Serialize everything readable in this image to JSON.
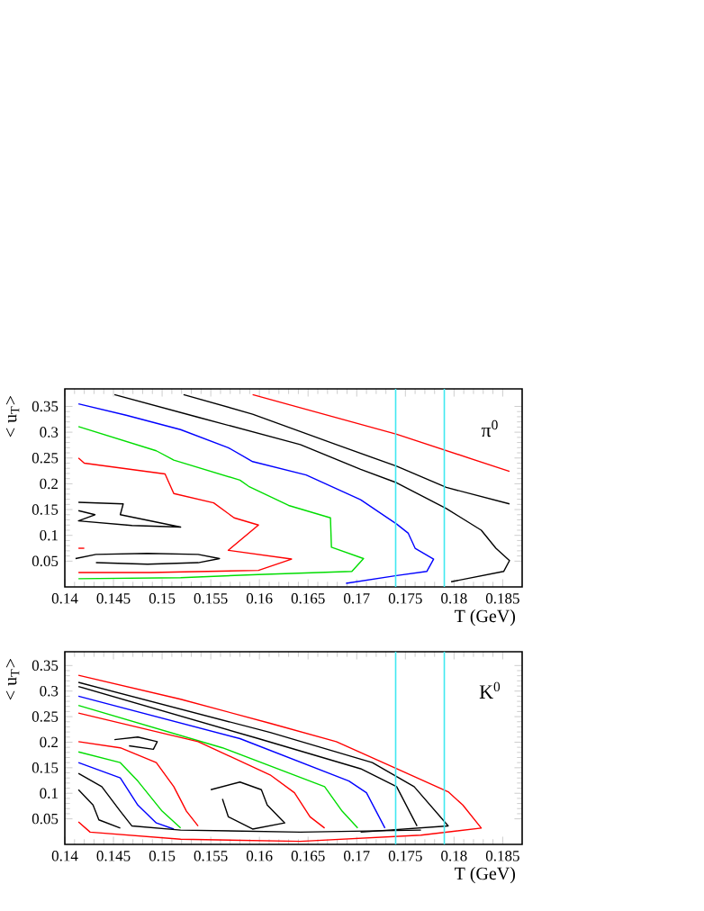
{
  "chart_data": [
    {
      "type": "line",
      "xlabel": "T (GeV)",
      "ylabel": "< u$_{T}$>",
      "xlim": [
        0.14,
        0.187
      ],
      "ylim": [
        0,
        0.384
      ],
      "xticks": [
        0.14,
        0.145,
        0.15,
        0.155,
        0.16,
        0.165,
        0.17,
        0.175,
        0.18,
        0.185
      ],
      "yticks": [
        0.05,
        0.1,
        0.15,
        0.2,
        0.25,
        0.3,
        0.35
      ],
      "annotations": [
        "π$^{0}$"
      ],
      "ref_lines": [
        {
          "axis": "x",
          "value": 0.174,
          "color": "#40e8f0"
        },
        {
          "axis": "x",
          "value": 0.179,
          "color": "#40e8f0"
        }
      ],
      "series": [
        {
          "color": "#ff0000",
          "x": [
            0.1593,
            0.1741,
            0.1857
          ],
          "values": [
            0.373,
            0.296,
            0.224
          ]
        },
        {
          "color": "#000000",
          "x": [
            0.1522,
            0.1593,
            0.1679,
            0.1741,
            0.1792,
            0.1857
          ],
          "values": [
            0.373,
            0.335,
            0.276,
            0.234,
            0.193,
            0.161
          ]
        },
        {
          "color": "#000000",
          "x": [
            0.1451,
            0.1537,
            0.1642,
            0.1704,
            0.1741,
            0.1792,
            0.1828,
            0.1843,
            0.1857,
            0.1851,
            0.1797
          ],
          "values": [
            0.373,
            0.329,
            0.276,
            0.228,
            0.202,
            0.152,
            0.11,
            0.075,
            0.051,
            0.03,
            0.01
          ]
        },
        {
          "color": "#0000ff",
          "x": [
            0.1414,
            0.1463,
            0.1519,
            0.1568,
            0.1593,
            0.1648,
            0.1704,
            0.1741,
            0.1753,
            0.176,
            0.1779,
            0.1772,
            0.1741,
            0.1689
          ],
          "values": [
            0.355,
            0.333,
            0.305,
            0.27,
            0.243,
            0.217,
            0.169,
            0.122,
            0.104,
            0.075,
            0.054,
            0.03,
            0.022,
            0.007
          ]
        },
        {
          "color": "#00dd00",
          "x": [
            0.1414,
            0.1494,
            0.1512,
            0.158,
            0.1589,
            0.163,
            0.1673,
            0.1674,
            0.1707,
            0.1695,
            0.1599,
            0.1519,
            0.1414
          ],
          "values": [
            0.311,
            0.264,
            0.246,
            0.207,
            0.195,
            0.158,
            0.134,
            0.077,
            0.055,
            0.03,
            0.024,
            0.018,
            0.016
          ]
        },
        {
          "color": "#ff0000",
          "x": [
            0.1414,
            0.142,
            0.1503,
            0.1512,
            0.1553,
            0.1574,
            0.1599,
            0.1568,
            0.1633,
            0.1599,
            0.1488,
            0.1414
          ],
          "values": [
            0.25,
            0.24,
            0.219,
            0.181,
            0.163,
            0.134,
            0.12,
            0.071,
            0.054,
            0.032,
            0.028,
            0.028
          ]
        },
        {
          "color": "#ff0000",
          "x": [
            0.1414,
            0.142
          ],
          "values": [
            0.075,
            0.075
          ]
        },
        {
          "color": "#000000",
          "x": [
            0.1414,
            0.146,
            0.1457,
            0.1519,
            0.1469,
            0.1414,
            0.1431,
            0.1414
          ],
          "values": [
            0.164,
            0.161,
            0.14,
            0.116,
            0.119,
            0.128,
            0.14,
            0.148
          ]
        },
        {
          "color": "#000000",
          "x": [
            0.1411,
            0.1432,
            0.1485,
            0.1537,
            0.1559,
            0.1537,
            0.1485,
            0.1432
          ],
          "values": [
            0.055,
            0.063,
            0.065,
            0.063,
            0.055,
            0.047,
            0.044,
            0.047
          ]
        }
      ]
    },
    {
      "type": "line",
      "xlabel": "T (GeV)",
      "ylabel": "< u$_{T}$>",
      "xlim": [
        0.14,
        0.187
      ],
      "ylim": [
        0,
        0.377
      ],
      "xticks": [
        0.14,
        0.145,
        0.15,
        0.155,
        0.16,
        0.165,
        0.17,
        0.175,
        0.18,
        0.185
      ],
      "yticks": [
        0.05,
        0.1,
        0.15,
        0.2,
        0.25,
        0.3,
        0.35
      ],
      "annotations": [
        "K$^{0}$"
      ],
      "ref_lines": [
        {
          "axis": "x",
          "value": 0.174,
          "color": "#40e8f0"
        },
        {
          "axis": "x",
          "value": 0.179,
          "color": "#40e8f0"
        }
      ],
      "series": [
        {
          "color": "#ff0000",
          "x": [
            0.1414,
            0.1519,
            0.1611,
            0.1679,
            0.1741,
            0.1794,
            0.1809,
            0.1828,
            0.1766,
            0.1642,
            0.1519,
            0.1426,
            0.1414
          ],
          "values": [
            0.331,
            0.284,
            0.237,
            0.201,
            0.148,
            0.103,
            0.077,
            0.032,
            0.018,
            0.006,
            0.01,
            0.024,
            0.044
          ]
        },
        {
          "color": "#000000",
          "x": [
            0.1414,
            0.1611,
            0.1716,
            0.1759,
            0.1794,
            0.1704
          ],
          "values": [
            0.317,
            0.219,
            0.16,
            0.113,
            0.036,
            0.024
          ]
        },
        {
          "color": "#000000",
          "x": [
            0.1414,
            0.1599,
            0.1704,
            0.1741,
            0.1762
          ],
          "values": [
            0.309,
            0.207,
            0.148,
            0.113,
            0.036
          ]
        },
        {
          "color": "#0000ff",
          "x": [
            0.1414,
            0.158,
            0.1692,
            0.171,
            0.1729
          ],
          "values": [
            0.29,
            0.207,
            0.124,
            0.101,
            0.032
          ]
        },
        {
          "color": "#00dd00",
          "x": [
            0.1414,
            0.1562,
            0.1667,
            0.1685,
            0.1701
          ],
          "values": [
            0.272,
            0.189,
            0.113,
            0.065,
            0.032
          ]
        },
        {
          "color": "#ff0000",
          "x": [
            0.1414,
            0.1537,
            0.1611,
            0.1636,
            0.1652,
            0.1667
          ],
          "values": [
            0.257,
            0.201,
            0.136,
            0.101,
            0.054,
            0.032
          ]
        },
        {
          "color": "#000000",
          "x": [
            0.155,
            0.158,
            0.1602,
            0.1608,
            0.1626,
            0.1593,
            0.1568,
            0.1562
          ],
          "values": [
            0.107,
            0.122,
            0.107,
            0.077,
            0.042,
            0.03,
            0.054,
            0.089
          ]
        },
        {
          "color": "#ff0000",
          "x": [
            0.1414,
            0.1457,
            0.1494,
            0.1512,
            0.1525,
            0.1537
          ],
          "values": [
            0.201,
            0.189,
            0.16,
            0.113,
            0.065,
            0.036
          ]
        },
        {
          "color": "#00dd00",
          "x": [
            0.1414,
            0.1457,
            0.1475,
            0.15,
            0.1519
          ],
          "values": [
            0.181,
            0.16,
            0.124,
            0.065,
            0.032
          ]
        },
        {
          "color": "#0000ff",
          "x": [
            0.1414,
            0.1457,
            0.1475,
            0.1494,
            0.1512
          ],
          "values": [
            0.16,
            0.13,
            0.077,
            0.042,
            0.03
          ]
        },
        {
          "color": "#000000",
          "x": [
            0.1414,
            0.1438,
            0.1457,
            0.1469,
            0.1519,
            0.1642,
            0.1766
          ],
          "values": [
            0.139,
            0.113,
            0.065,
            0.036,
            0.028,
            0.024,
            0.028
          ]
        },
        {
          "color": "#000000",
          "x": [
            0.1414,
            0.1429,
            0.1435,
            0.1457
          ],
          "values": [
            0.107,
            0.077,
            0.048,
            0.032
          ]
        },
        {
          "color": "#000000",
          "x": [
            0.1451,
            0.1475,
            0.1495,
            0.1491,
            0.1466
          ],
          "values": [
            0.205,
            0.21,
            0.201,
            0.186,
            0.193
          ]
        }
      ]
    }
  ]
}
